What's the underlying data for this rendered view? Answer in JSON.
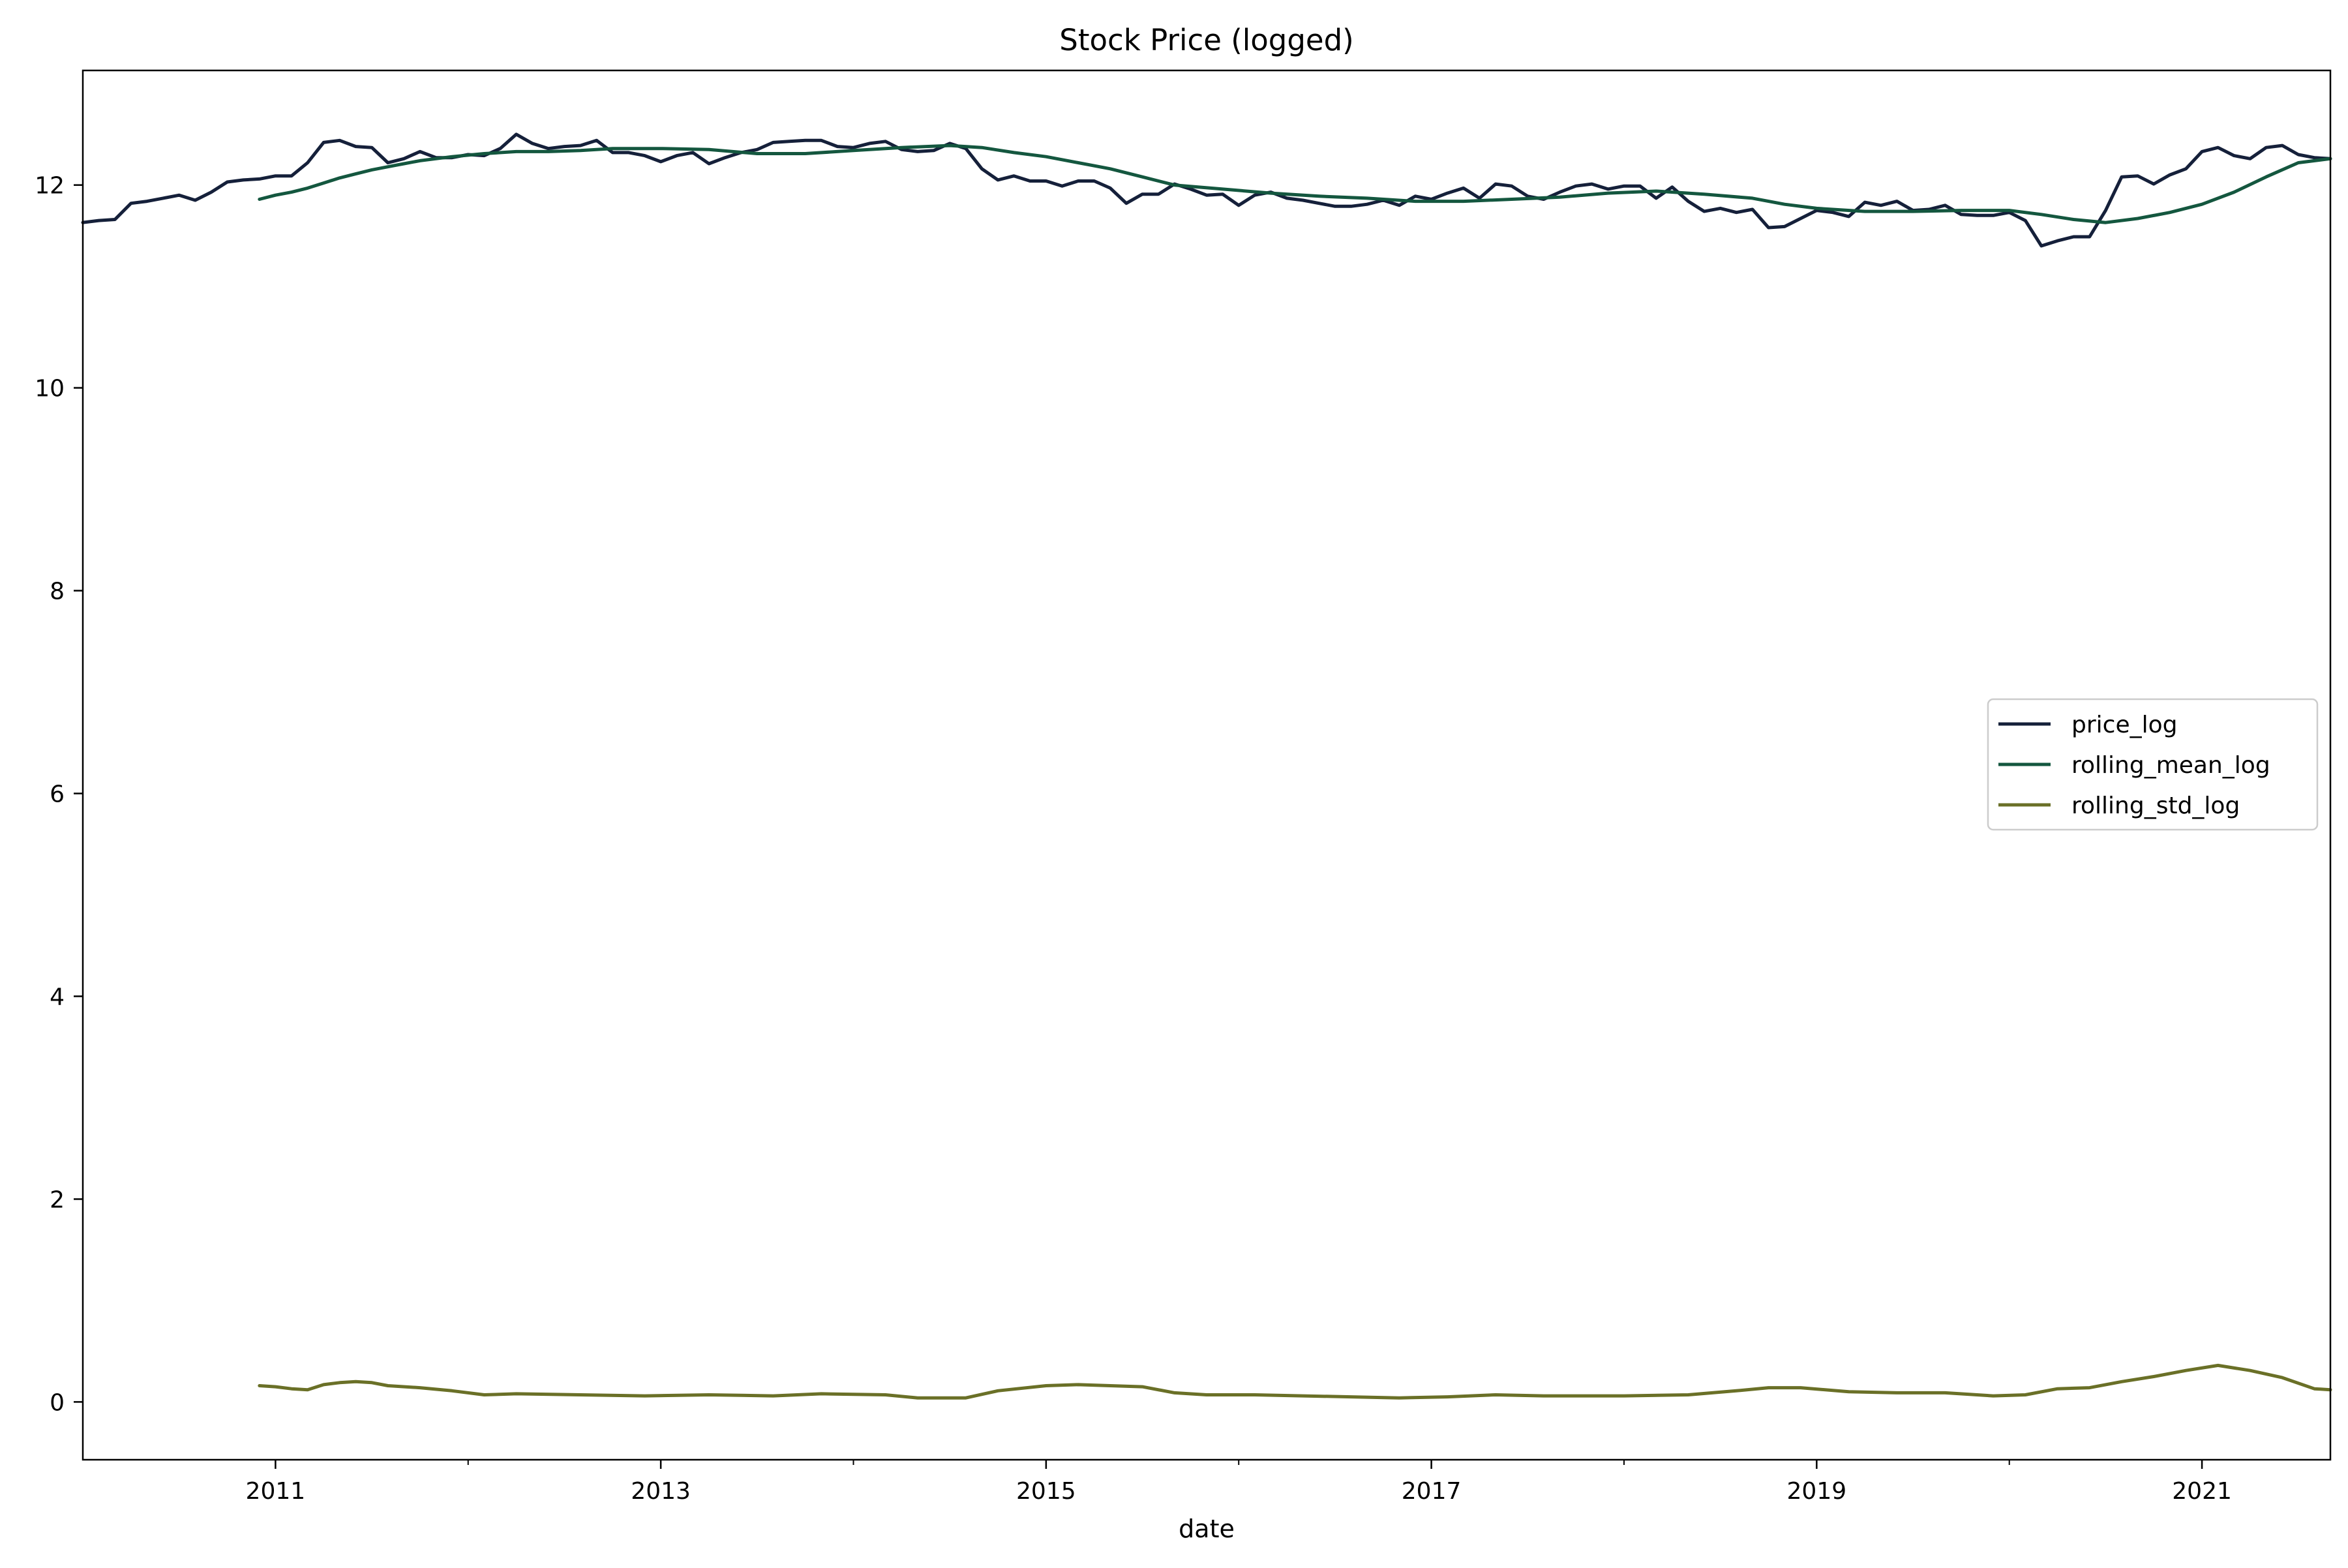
{
  "chart_data": {
    "type": "line",
    "title": "Stock Price (logged)",
    "xlabel": "date",
    "ylabel": "",
    "xlim": [
      "2010-01",
      "2021-09"
    ],
    "ylim": [
      -0.57,
      13.13
    ],
    "grid": false,
    "legend_position": "center right",
    "x_ticks": [
      {
        "label": "2011",
        "value": "2011-01"
      },
      {
        "label": "2013",
        "value": "2013-01"
      },
      {
        "label": "2015",
        "value": "2015-01"
      },
      {
        "label": "2017",
        "value": "2017-01"
      },
      {
        "label": "2019",
        "value": "2019-01"
      },
      {
        "label": "2021",
        "value": "2021-01"
      }
    ],
    "x_minor_ticks": [
      "2012-01",
      "2014-01",
      "2016-01",
      "2018-01",
      "2020-01"
    ],
    "y_ticks": [
      {
        "label": "0",
        "value": 0
      },
      {
        "label": "2",
        "value": 2
      },
      {
        "label": "4",
        "value": 4
      },
      {
        "label": "6",
        "value": 6
      },
      {
        "label": "8",
        "value": 8
      },
      {
        "label": "10",
        "value": 10
      },
      {
        "label": "12",
        "value": 12
      }
    ],
    "series": [
      {
        "name": "price_log",
        "color": "#15203a",
        "points": [
          [
            "2010-01",
            11.63
          ],
          [
            "2010-02",
            11.65
          ],
          [
            "2010-03",
            11.66
          ],
          [
            "2010-04",
            11.82
          ],
          [
            "2010-05",
            11.84
          ],
          [
            "2010-06",
            11.87
          ],
          [
            "2010-07",
            11.9
          ],
          [
            "2010-08",
            11.85
          ],
          [
            "2010-09",
            11.93
          ],
          [
            "2010-10",
            12.03
          ],
          [
            "2010-11",
            12.05
          ],
          [
            "2010-12",
            12.06
          ],
          [
            "2011-01",
            12.09
          ],
          [
            "2011-02",
            12.09
          ],
          [
            "2011-03",
            12.22
          ],
          [
            "2011-04",
            12.42
          ],
          [
            "2011-05",
            12.44
          ],
          [
            "2011-06",
            12.38
          ],
          [
            "2011-07",
            12.37
          ],
          [
            "2011-08",
            12.22
          ],
          [
            "2011-09",
            12.26
          ],
          [
            "2011-10",
            12.33
          ],
          [
            "2011-11",
            12.27
          ],
          [
            "2011-12",
            12.27
          ],
          [
            "2012-01",
            12.3
          ],
          [
            "2012-02",
            12.29
          ],
          [
            "2012-03",
            12.36
          ],
          [
            "2012-04",
            12.5
          ],
          [
            "2012-05",
            12.41
          ],
          [
            "2012-06",
            12.36
          ],
          [
            "2012-07",
            12.38
          ],
          [
            "2012-08",
            12.39
          ],
          [
            "2012-09",
            12.44
          ],
          [
            "2012-10",
            12.32
          ],
          [
            "2012-11",
            12.32
          ],
          [
            "2012-12",
            12.29
          ],
          [
            "2013-01",
            12.23
          ],
          [
            "2013-02",
            12.29
          ],
          [
            "2013-03",
            12.32
          ],
          [
            "2013-04",
            12.21
          ],
          [
            "2013-05",
            12.27
          ],
          [
            "2013-06",
            12.32
          ],
          [
            "2013-07",
            12.35
          ],
          [
            "2013-08",
            12.42
          ],
          [
            "2013-09",
            12.43
          ],
          [
            "2013-10",
            12.44
          ],
          [
            "2013-11",
            12.44
          ],
          [
            "2013-12",
            12.38
          ],
          [
            "2014-01",
            12.37
          ],
          [
            "2014-02",
            12.41
          ],
          [
            "2014-03",
            12.43
          ],
          [
            "2014-04",
            12.35
          ],
          [
            "2014-05",
            12.33
          ],
          [
            "2014-06",
            12.34
          ],
          [
            "2014-07",
            12.41
          ],
          [
            "2014-08",
            12.36
          ],
          [
            "2014-09",
            12.16
          ],
          [
            "2014-10",
            12.05
          ],
          [
            "2014-11",
            12.09
          ],
          [
            "2014-12",
            12.04
          ],
          [
            "2015-01",
            12.04
          ],
          [
            "2015-02",
            11.99
          ],
          [
            "2015-03",
            12.04
          ],
          [
            "2015-04",
            12.04
          ],
          [
            "2015-05",
            11.97
          ],
          [
            "2015-06",
            11.82
          ],
          [
            "2015-07",
            11.91
          ],
          [
            "2015-08",
            11.91
          ],
          [
            "2015-09",
            12.01
          ],
          [
            "2015-10",
            11.96
          ],
          [
            "2015-11",
            11.9
          ],
          [
            "2015-12",
            11.91
          ],
          [
            "2016-01",
            11.8
          ],
          [
            "2016-02",
            11.9
          ],
          [
            "2016-03",
            11.93
          ],
          [
            "2016-04",
            11.87
          ],
          [
            "2016-05",
            11.85
          ],
          [
            "2016-06",
            11.82
          ],
          [
            "2016-07",
            11.79
          ],
          [
            "2016-08",
            11.79
          ],
          [
            "2016-09",
            11.81
          ],
          [
            "2016-10",
            11.85
          ],
          [
            "2016-11",
            11.8
          ],
          [
            "2016-12",
            11.89
          ],
          [
            "2017-01",
            11.86
          ],
          [
            "2017-02",
            11.92
          ],
          [
            "2017-03",
            11.97
          ],
          [
            "2017-04",
            11.87
          ],
          [
            "2017-05",
            12.01
          ],
          [
            "2017-06",
            11.99
          ],
          [
            "2017-07",
            11.89
          ],
          [
            "2017-08",
            11.86
          ],
          [
            "2017-09",
            11.93
          ],
          [
            "2017-10",
            11.99
          ],
          [
            "2017-11",
            12.01
          ],
          [
            "2017-12",
            11.96
          ],
          [
            "2018-01",
            11.99
          ],
          [
            "2018-02",
            11.99
          ],
          [
            "2018-03",
            11.87
          ],
          [
            "2018-04",
            11.98
          ],
          [
            "2018-05",
            11.84
          ],
          [
            "2018-06",
            11.74
          ],
          [
            "2018-07",
            11.77
          ],
          [
            "2018-08",
            11.73
          ],
          [
            "2018-09",
            11.76
          ],
          [
            "2018-10",
            11.58
          ],
          [
            "2018-11",
            11.59
          ],
          [
            "2018-12",
            11.67
          ],
          [
            "2019-01",
            11.75
          ],
          [
            "2019-02",
            11.73
          ],
          [
            "2019-03",
            11.69
          ],
          [
            "2019-04",
            11.83
          ],
          [
            "2019-05",
            11.8
          ],
          [
            "2019-06",
            11.84
          ],
          [
            "2019-07",
            11.75
          ],
          [
            "2019-08",
            11.76
          ],
          [
            "2019-09",
            11.8
          ],
          [
            "2019-10",
            11.71
          ],
          [
            "2019-11",
            11.7
          ],
          [
            "2019-12",
            11.7
          ],
          [
            "2020-01",
            11.73
          ],
          [
            "2020-02",
            11.65
          ],
          [
            "2020-03",
            11.4
          ],
          [
            "2020-04",
            11.45
          ],
          [
            "2020-05",
            11.49
          ],
          [
            "2020-06",
            11.49
          ],
          [
            "2020-07",
            11.75
          ],
          [
            "2020-08",
            12.08
          ],
          [
            "2020-09",
            12.09
          ],
          [
            "2020-10",
            12.01
          ],
          [
            "2020-11",
            12.1
          ],
          [
            "2020-12",
            12.16
          ],
          [
            "2021-01",
            12.33
          ],
          [
            "2021-02",
            12.37
          ],
          [
            "2021-03",
            12.29
          ],
          [
            "2021-04",
            12.26
          ],
          [
            "2021-05",
            12.37
          ],
          [
            "2021-06",
            12.39
          ],
          [
            "2021-07",
            12.3
          ],
          [
            "2021-08",
            12.27
          ],
          [
            "2021-09",
            12.26
          ]
        ]
      },
      {
        "name": "rolling_mean_log",
        "color": "#14573f",
        "points": [
          [
            "2010-12",
            11.86
          ],
          [
            "2011-01",
            11.9
          ],
          [
            "2011-02",
            11.93
          ],
          [
            "2011-03",
            11.97
          ],
          [
            "2011-04",
            12.02
          ],
          [
            "2011-05",
            12.07
          ],
          [
            "2011-06",
            12.11
          ],
          [
            "2011-07",
            12.15
          ],
          [
            "2011-08",
            12.18
          ],
          [
            "2011-09",
            12.21
          ],
          [
            "2011-10",
            12.24
          ],
          [
            "2011-11",
            12.26
          ],
          [
            "2011-12",
            12.28
          ],
          [
            "2012-02",
            12.31
          ],
          [
            "2012-04",
            12.33
          ],
          [
            "2012-06",
            12.33
          ],
          [
            "2012-08",
            12.34
          ],
          [
            "2012-10",
            12.36
          ],
          [
            "2013-01",
            12.36
          ],
          [
            "2013-04",
            12.35
          ],
          [
            "2013-07",
            12.31
          ],
          [
            "2013-10",
            12.31
          ],
          [
            "2014-01",
            12.34
          ],
          [
            "2014-04",
            12.37
          ],
          [
            "2014-07",
            12.39
          ],
          [
            "2014-09",
            12.37
          ],
          [
            "2014-11",
            12.32
          ],
          [
            "2015-01",
            12.28
          ],
          [
            "2015-03",
            12.22
          ],
          [
            "2015-05",
            12.16
          ],
          [
            "2015-07",
            12.08
          ],
          [
            "2015-09",
            12.0
          ],
          [
            "2015-12",
            11.96
          ],
          [
            "2016-03",
            11.92
          ],
          [
            "2016-06",
            11.89
          ],
          [
            "2016-09",
            11.87
          ],
          [
            "2016-12",
            11.84
          ],
          [
            "2017-03",
            11.84
          ],
          [
            "2017-06",
            11.86
          ],
          [
            "2017-09",
            11.88
          ],
          [
            "2017-12",
            11.92
          ],
          [
            "2018-03",
            11.94
          ],
          [
            "2018-06",
            11.91
          ],
          [
            "2018-09",
            11.87
          ],
          [
            "2018-11",
            11.81
          ],
          [
            "2019-01",
            11.77
          ],
          [
            "2019-04",
            11.74
          ],
          [
            "2019-07",
            11.74
          ],
          [
            "2019-10",
            11.75
          ],
          [
            "2020-01",
            11.75
          ],
          [
            "2020-03",
            11.71
          ],
          [
            "2020-05",
            11.66
          ],
          [
            "2020-07",
            11.63
          ],
          [
            "2020-09",
            11.67
          ],
          [
            "2020-11",
            11.73
          ],
          [
            "2021-01",
            11.81
          ],
          [
            "2021-03",
            11.93
          ],
          [
            "2021-05",
            12.08
          ],
          [
            "2021-07",
            12.22
          ],
          [
            "2021-09",
            12.26
          ]
        ]
      },
      {
        "name": "rolling_std_log",
        "color": "#6a7027",
        "points": [
          [
            "2010-12",
            0.16
          ],
          [
            "2011-01",
            0.15
          ],
          [
            "2011-02",
            0.13
          ],
          [
            "2011-03",
            0.12
          ],
          [
            "2011-04",
            0.17
          ],
          [
            "2011-05",
            0.19
          ],
          [
            "2011-06",
            0.2
          ],
          [
            "2011-07",
            0.19
          ],
          [
            "2011-08",
            0.16
          ],
          [
            "2011-10",
            0.14
          ],
          [
            "2011-12",
            0.11
          ],
          [
            "2012-02",
            0.07
          ],
          [
            "2012-04",
            0.08
          ],
          [
            "2012-08",
            0.07
          ],
          [
            "2012-12",
            0.06
          ],
          [
            "2013-04",
            0.07
          ],
          [
            "2013-08",
            0.06
          ],
          [
            "2013-11",
            0.08
          ],
          [
            "2014-03",
            0.07
          ],
          [
            "2014-05",
            0.04
          ],
          [
            "2014-08",
            0.04
          ],
          [
            "2014-10",
            0.11
          ],
          [
            "2015-01",
            0.16
          ],
          [
            "2015-03",
            0.17
          ],
          [
            "2015-05",
            0.16
          ],
          [
            "2015-07",
            0.15
          ],
          [
            "2015-09",
            0.09
          ],
          [
            "2015-11",
            0.07
          ],
          [
            "2016-02",
            0.07
          ],
          [
            "2016-05",
            0.06
          ],
          [
            "2016-08",
            0.05
          ],
          [
            "2016-11",
            0.04
          ],
          [
            "2017-02",
            0.05
          ],
          [
            "2017-05",
            0.07
          ],
          [
            "2017-08",
            0.06
          ],
          [
            "2018-01",
            0.06
          ],
          [
            "2018-05",
            0.07
          ],
          [
            "2018-08",
            0.11
          ],
          [
            "2018-10",
            0.14
          ],
          [
            "2018-12",
            0.14
          ],
          [
            "2019-03",
            0.1
          ],
          [
            "2019-06",
            0.09
          ],
          [
            "2019-09",
            0.09
          ],
          [
            "2019-12",
            0.06
          ],
          [
            "2020-02",
            0.07
          ],
          [
            "2020-04",
            0.13
          ],
          [
            "2020-06",
            0.14
          ],
          [
            "2020-08",
            0.2
          ],
          [
            "2020-10",
            0.25
          ],
          [
            "2020-12",
            0.31
          ],
          [
            "2021-02",
            0.36
          ],
          [
            "2021-04",
            0.31
          ],
          [
            "2021-06",
            0.24
          ],
          [
            "2021-08",
            0.13
          ],
          [
            "2021-09",
            0.12
          ]
        ]
      }
    ]
  }
}
